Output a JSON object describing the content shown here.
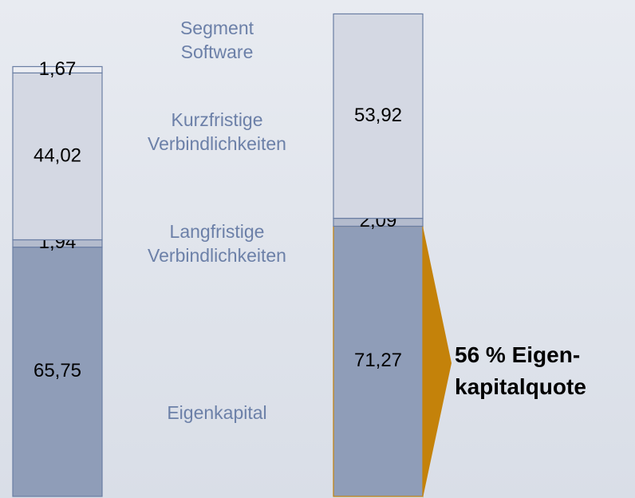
{
  "chart_data": {
    "type": "bar",
    "stacked": true,
    "categories": [
      null,
      null
    ],
    "series": [
      {
        "name": "Eigenkapital",
        "color": "#8f9db8",
        "values": [
          65.75,
          71.27
        ],
        "value_labels": [
          "65,75",
          "71,27"
        ]
      },
      {
        "name": "Langfristige Verbindlichkeiten",
        "color": "#b3bbcd",
        "values": [
          1.94,
          2.09
        ],
        "value_labels": [
          "1,94",
          "2,09"
        ]
      },
      {
        "name": "Kurzfristige Verbindlichkeiten",
        "color": "#d4d8e3",
        "values": [
          44.02,
          53.92
        ],
        "value_labels": [
          "44,02",
          "53,92"
        ]
      },
      {
        "name": "Segment Software",
        "color": "#eceef3",
        "values": [
          1.67,
          null
        ],
        "value_labels": [
          "1,67",
          null
        ]
      }
    ],
    "annotation": [
      "56 % Eigen-",
      "kapitalquote"
    ],
    "annotation_color": "#c4820a"
  }
}
